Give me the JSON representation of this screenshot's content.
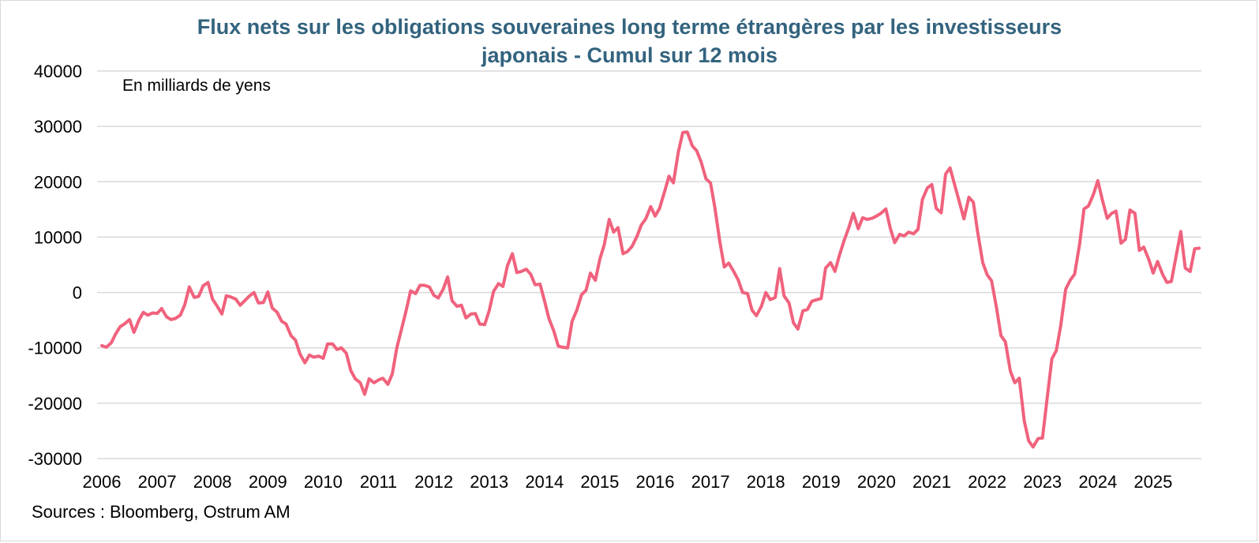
{
  "title_line1": "Flux nets sur les obligations souveraines long terme étrangères par les investisseurs",
  "title_line2": "japonais - Cumul sur 12 mois",
  "sources": "Sources : Bloomberg, Ostrum AM",
  "chart_data": {
    "type": "line",
    "title": "Flux nets sur les obligations souveraines long terme étrangères par les investisseurs japonais - Cumul sur 12 mois",
    "unit_label": "En milliards de yens",
    "xlabel": "",
    "ylabel": "",
    "xlim": [
      2006,
      2026
    ],
    "ylim": [
      -30000,
      40000
    ],
    "y_ticks": [
      40000,
      30000,
      20000,
      10000,
      0,
      -10000,
      -20000,
      -30000
    ],
    "x_ticks": [
      2006,
      2007,
      2008,
      2009,
      2010,
      2011,
      2012,
      2013,
      2014,
      2015,
      2016,
      2017,
      2018,
      2019,
      2020,
      2021,
      2022,
      2023,
      2024,
      2025
    ],
    "grid": "horizontal",
    "line_color": "#f0627d",
    "grid_color": "#d9d9d9",
    "series": [
      {
        "x": [
          2006.0,
          2006.08,
          2006.17,
          2006.25,
          2006.33,
          2006.42,
          2006.5,
          2006.58,
          2006.67,
          2006.75,
          2006.83,
          2006.92,
          2007.0,
          2007.08,
          2007.17,
          2007.25,
          2007.33,
          2007.42,
          2007.5,
          2007.58,
          2007.67,
          2007.75,
          2007.83,
          2007.92,
          2008.0,
          2008.08,
          2008.17,
          2008.25,
          2008.33,
          2008.42,
          2008.5,
          2008.58,
          2008.67,
          2008.75,
          2008.83,
          2008.92,
          2009.0,
          2009.08,
          2009.17,
          2009.25,
          2009.33,
          2009.42,
          2009.5,
          2009.58,
          2009.67,
          2009.75,
          2009.83,
          2009.92,
          2010.0,
          2010.08,
          2010.17,
          2010.25,
          2010.33,
          2010.42,
          2010.5,
          2010.58,
          2010.67,
          2010.75,
          2010.83,
          2010.92,
          2011.0,
          2011.08,
          2011.17,
          2011.25,
          2011.33,
          2011.42,
          2011.5,
          2011.58,
          2011.67,
          2011.75,
          2011.83,
          2011.92,
          2012.0,
          2012.08,
          2012.17,
          2012.25,
          2012.33,
          2012.42,
          2012.5,
          2012.58,
          2012.67,
          2012.75,
          2012.83,
          2012.92,
          2013.0,
          2013.08,
          2013.17,
          2013.25,
          2013.33,
          2013.42,
          2013.5,
          2013.58,
          2013.67,
          2013.75,
          2013.83,
          2013.92,
          2014.0,
          2014.08,
          2014.17,
          2014.25,
          2014.33,
          2014.42,
          2014.5,
          2014.58,
          2014.67,
          2014.75,
          2014.83,
          2014.92,
          2015.0,
          2015.08,
          2015.17,
          2015.25,
          2015.33,
          2015.42,
          2015.5,
          2015.58,
          2015.67,
          2015.75,
          2015.83,
          2015.92,
          2016.0,
          2016.08,
          2016.17,
          2016.25,
          2016.33,
          2016.42,
          2016.5,
          2016.58,
          2016.67,
          2016.75,
          2016.83,
          2016.92,
          2017.0,
          2017.08,
          2017.17,
          2017.25,
          2017.33,
          2017.42,
          2017.5,
          2017.58,
          2017.67,
          2017.75,
          2017.83,
          2017.92,
          2018.0,
          2018.08,
          2018.17,
          2018.25,
          2018.33,
          2018.42,
          2018.5,
          2018.58,
          2018.67,
          2018.75,
          2018.83,
          2018.92,
          2019.0,
          2019.08,
          2019.17,
          2019.25,
          2019.33,
          2019.42,
          2019.5,
          2019.58,
          2019.67,
          2019.75,
          2019.83,
          2019.92,
          2020.0,
          2020.08,
          2020.17,
          2020.25,
          2020.33,
          2020.42,
          2020.5,
          2020.58,
          2020.67,
          2020.75,
          2020.83,
          2020.92,
          2021.0,
          2021.08,
          2021.17,
          2021.25,
          2021.33,
          2021.42,
          2021.5,
          2021.58,
          2021.67,
          2021.75,
          2021.83,
          2021.92,
          2022.0,
          2022.08,
          2022.17,
          2022.25,
          2022.33,
          2022.42,
          2022.5,
          2022.58,
          2022.67,
          2022.75,
          2022.83,
          2022.92,
          2023.0,
          2023.08,
          2023.17,
          2023.25,
          2023.33,
          2023.42,
          2023.5,
          2023.58,
          2023.67,
          2023.75,
          2023.83,
          2023.92,
          2024.0,
          2024.08,
          2024.17,
          2024.25,
          2024.33,
          2024.42,
          2024.5,
          2024.58,
          2024.67,
          2024.75,
          2024.83,
          2024.92,
          2025.0,
          2025.08,
          2025.17,
          2025.25,
          2025.33,
          2025.42,
          2025.5,
          2025.58,
          2025.67,
          2025.75,
          2025.83
        ],
        "values": [
          -9600,
          -9900,
          -9100,
          -7500,
          -6200,
          -5600,
          -4900,
          -7200,
          -5000,
          -3600,
          -4100,
          -3700,
          -3800,
          -2900,
          -4400,
          -4900,
          -4700,
          -4100,
          -2200,
          1000,
          -900,
          -700,
          1200,
          1800,
          -1200,
          -2400,
          -3900,
          -600,
          -800,
          -1200,
          -2300,
          -1500,
          -600,
          0,
          -1900,
          -1800,
          100,
          -2800,
          -3600,
          -5200,
          -5700,
          -7800,
          -8600,
          -11100,
          -12700,
          -11300,
          -11700,
          -11500,
          -11900,
          -9300,
          -9300,
          -10300,
          -10000,
          -11000,
          -14100,
          -15600,
          -16300,
          -18400,
          -15600,
          -16300,
          -15800,
          -15500,
          -16600,
          -14700,
          -10100,
          -6500,
          -3300,
          300,
          -200,
          1300,
          1300,
          1000,
          -500,
          -1000,
          600,
          2800,
          -1500,
          -2500,
          -2300,
          -4600,
          -3900,
          -3800,
          -5700,
          -5800,
          -3300,
          200,
          1600,
          1100,
          4800,
          7000,
          3600,
          3800,
          4200,
          3300,
          1400,
          1500,
          -1500,
          -4700,
          -7000,
          -9700,
          -9900,
          -10000,
          -5200,
          -3300,
          -400,
          400,
          3500,
          2200,
          6000,
          8600,
          13200,
          10900,
          11700,
          7000,
          7400,
          8300,
          10100,
          12200,
          13300,
          15500,
          13800,
          15200,
          18200,
          21000,
          19800,
          25400,
          28900,
          29000,
          26500,
          25600,
          23600,
          20500,
          19800,
          15300,
          9100,
          4600,
          5300,
          3800,
          2300,
          0,
          -200,
          -3200,
          -4200,
          -2500,
          0,
          -1300,
          -900,
          4300,
          -600,
          -1900,
          -5500,
          -6600,
          -3300,
          -3100,
          -1600,
          -1300,
          -1100,
          4400,
          5400,
          3800,
          6700,
          9500,
          11700,
          14300,
          11500,
          13500,
          13200,
          13400,
          13800,
          14300,
          15100,
          11600,
          9000,
          10500,
          10200,
          10900,
          10600,
          11400,
          16800,
          18900,
          19500,
          15200,
          14400,
          21400,
          22500,
          19200,
          16300,
          13300,
          17200,
          16300,
          10800,
          5400,
          3200,
          2100,
          -2800,
          -7800,
          -8900,
          -14200,
          -16300,
          -15500,
          -23200,
          -26800,
          -27900,
          -26400,
          -26300,
          -19500,
          -12000,
          -10500,
          -6000,
          600,
          2200,
          3300,
          8700,
          15100,
          15600,
          17700,
          20200,
          16800,
          13400,
          14300,
          14700,
          8900,
          9600,
          14900,
          14300,
          7600,
          8200,
          6000,
          3500,
          5600,
          3300,
          1800,
          2000,
          6800,
          11000,
          4400,
          3800,
          7900,
          8000
        ]
      }
    ]
  }
}
